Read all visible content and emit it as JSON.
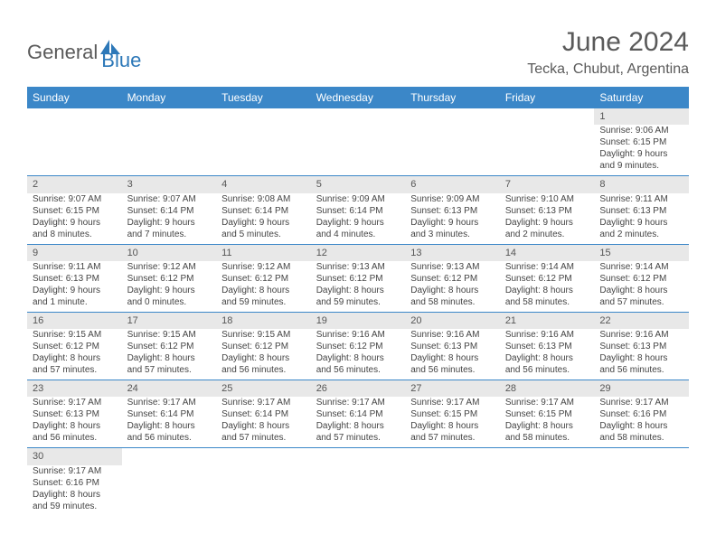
{
  "logo": {
    "part1": "General",
    "part2": "Blue"
  },
  "title": "June 2024",
  "location": "Tecka, Chubut, Argentina",
  "colors": {
    "header_bg": "#3b87c8",
    "header_text": "#ffffff",
    "daynum_bg": "#e8e8e8",
    "border": "#3b87c8",
    "logo_gray": "#5a5a5a",
    "logo_blue": "#2d78b8"
  },
  "weekdays": [
    "Sunday",
    "Monday",
    "Tuesday",
    "Wednesday",
    "Thursday",
    "Friday",
    "Saturday"
  ],
  "weeks": [
    [
      null,
      null,
      null,
      null,
      null,
      null,
      {
        "d": "1",
        "sr": "Sunrise: 9:06 AM",
        "ss": "Sunset: 6:15 PM",
        "dl": "Daylight: 9 hours and 9 minutes."
      }
    ],
    [
      {
        "d": "2",
        "sr": "Sunrise: 9:07 AM",
        "ss": "Sunset: 6:15 PM",
        "dl": "Daylight: 9 hours and 8 minutes."
      },
      {
        "d": "3",
        "sr": "Sunrise: 9:07 AM",
        "ss": "Sunset: 6:14 PM",
        "dl": "Daylight: 9 hours and 7 minutes."
      },
      {
        "d": "4",
        "sr": "Sunrise: 9:08 AM",
        "ss": "Sunset: 6:14 PM",
        "dl": "Daylight: 9 hours and 5 minutes."
      },
      {
        "d": "5",
        "sr": "Sunrise: 9:09 AM",
        "ss": "Sunset: 6:14 PM",
        "dl": "Daylight: 9 hours and 4 minutes."
      },
      {
        "d": "6",
        "sr": "Sunrise: 9:09 AM",
        "ss": "Sunset: 6:13 PM",
        "dl": "Daylight: 9 hours and 3 minutes."
      },
      {
        "d": "7",
        "sr": "Sunrise: 9:10 AM",
        "ss": "Sunset: 6:13 PM",
        "dl": "Daylight: 9 hours and 2 minutes."
      },
      {
        "d": "8",
        "sr": "Sunrise: 9:11 AM",
        "ss": "Sunset: 6:13 PM",
        "dl": "Daylight: 9 hours and 2 minutes."
      }
    ],
    [
      {
        "d": "9",
        "sr": "Sunrise: 9:11 AM",
        "ss": "Sunset: 6:13 PM",
        "dl": "Daylight: 9 hours and 1 minute."
      },
      {
        "d": "10",
        "sr": "Sunrise: 9:12 AM",
        "ss": "Sunset: 6:12 PM",
        "dl": "Daylight: 9 hours and 0 minutes."
      },
      {
        "d": "11",
        "sr": "Sunrise: 9:12 AM",
        "ss": "Sunset: 6:12 PM",
        "dl": "Daylight: 8 hours and 59 minutes."
      },
      {
        "d": "12",
        "sr": "Sunrise: 9:13 AM",
        "ss": "Sunset: 6:12 PM",
        "dl": "Daylight: 8 hours and 59 minutes."
      },
      {
        "d": "13",
        "sr": "Sunrise: 9:13 AM",
        "ss": "Sunset: 6:12 PM",
        "dl": "Daylight: 8 hours and 58 minutes."
      },
      {
        "d": "14",
        "sr": "Sunrise: 9:14 AM",
        "ss": "Sunset: 6:12 PM",
        "dl": "Daylight: 8 hours and 58 minutes."
      },
      {
        "d": "15",
        "sr": "Sunrise: 9:14 AM",
        "ss": "Sunset: 6:12 PM",
        "dl": "Daylight: 8 hours and 57 minutes."
      }
    ],
    [
      {
        "d": "16",
        "sr": "Sunrise: 9:15 AM",
        "ss": "Sunset: 6:12 PM",
        "dl": "Daylight: 8 hours and 57 minutes."
      },
      {
        "d": "17",
        "sr": "Sunrise: 9:15 AM",
        "ss": "Sunset: 6:12 PM",
        "dl": "Daylight: 8 hours and 57 minutes."
      },
      {
        "d": "18",
        "sr": "Sunrise: 9:15 AM",
        "ss": "Sunset: 6:12 PM",
        "dl": "Daylight: 8 hours and 56 minutes."
      },
      {
        "d": "19",
        "sr": "Sunrise: 9:16 AM",
        "ss": "Sunset: 6:12 PM",
        "dl": "Daylight: 8 hours and 56 minutes."
      },
      {
        "d": "20",
        "sr": "Sunrise: 9:16 AM",
        "ss": "Sunset: 6:13 PM",
        "dl": "Daylight: 8 hours and 56 minutes."
      },
      {
        "d": "21",
        "sr": "Sunrise: 9:16 AM",
        "ss": "Sunset: 6:13 PM",
        "dl": "Daylight: 8 hours and 56 minutes."
      },
      {
        "d": "22",
        "sr": "Sunrise: 9:16 AM",
        "ss": "Sunset: 6:13 PM",
        "dl": "Daylight: 8 hours and 56 minutes."
      }
    ],
    [
      {
        "d": "23",
        "sr": "Sunrise: 9:17 AM",
        "ss": "Sunset: 6:13 PM",
        "dl": "Daylight: 8 hours and 56 minutes."
      },
      {
        "d": "24",
        "sr": "Sunrise: 9:17 AM",
        "ss": "Sunset: 6:14 PM",
        "dl": "Daylight: 8 hours and 56 minutes."
      },
      {
        "d": "25",
        "sr": "Sunrise: 9:17 AM",
        "ss": "Sunset: 6:14 PM",
        "dl": "Daylight: 8 hours and 57 minutes."
      },
      {
        "d": "26",
        "sr": "Sunrise: 9:17 AM",
        "ss": "Sunset: 6:14 PM",
        "dl": "Daylight: 8 hours and 57 minutes."
      },
      {
        "d": "27",
        "sr": "Sunrise: 9:17 AM",
        "ss": "Sunset: 6:15 PM",
        "dl": "Daylight: 8 hours and 57 minutes."
      },
      {
        "d": "28",
        "sr": "Sunrise: 9:17 AM",
        "ss": "Sunset: 6:15 PM",
        "dl": "Daylight: 8 hours and 58 minutes."
      },
      {
        "d": "29",
        "sr": "Sunrise: 9:17 AM",
        "ss": "Sunset: 6:16 PM",
        "dl": "Daylight: 8 hours and 58 minutes."
      }
    ],
    [
      {
        "d": "30",
        "sr": "Sunrise: 9:17 AM",
        "ss": "Sunset: 6:16 PM",
        "dl": "Daylight: 8 hours and 59 minutes."
      },
      null,
      null,
      null,
      null,
      null,
      null
    ]
  ]
}
